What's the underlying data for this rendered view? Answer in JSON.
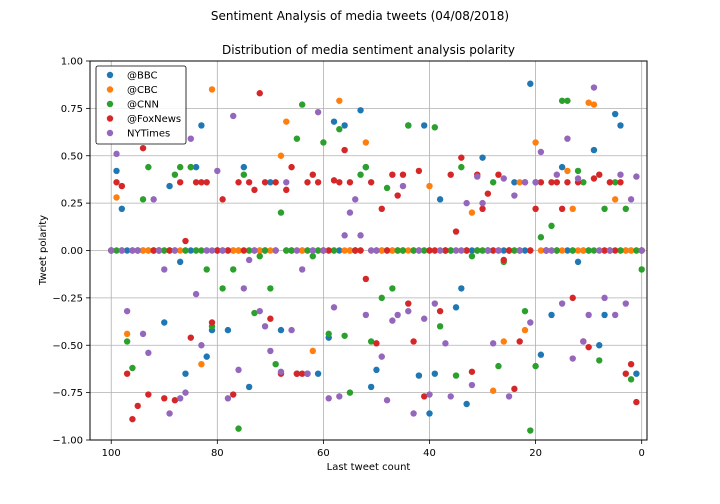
{
  "chart_data": {
    "type": "scatter",
    "title": "Sentiment Analysis of media tweets (04/08/2018)",
    "subtitle": "Distribution of media sentiment analysis polarity",
    "xlabel": "Last tweet count",
    "ylabel": "Tweet polarity",
    "xlim": [
      104,
      -1
    ],
    "ylim": [
      -1.0,
      1.0
    ],
    "x_ticks": [
      100,
      80,
      60,
      40,
      20,
      0
    ],
    "x_tick_labels": [
      "100",
      "80",
      "60",
      "40",
      "20",
      "0"
    ],
    "y_ticks": [
      1.0,
      0.75,
      0.5,
      0.25,
      0.0,
      -0.25,
      -0.5,
      -0.75,
      -1.0
    ],
    "y_tick_labels": [
      "1.00",
      "0.75",
      "0.50",
      "0.25",
      "0.00",
      "−0.25",
      "−0.50",
      "−0.75",
      "−1.00"
    ],
    "grid": true,
    "legend_position": "top-left",
    "series": [
      {
        "name": "@BBC",
        "color": "#1f77b4",
        "points": [
          [
            99,
            0.42
          ],
          [
            98,
            0.22
          ],
          [
            92,
            0.0
          ],
          [
            90,
            -0.38
          ],
          [
            89,
            0.34
          ],
          [
            87,
            -0.06
          ],
          [
            86,
            -0.65
          ],
          [
            84,
            0.44
          ],
          [
            83,
            0.66
          ],
          [
            82,
            -0.56
          ],
          [
            81,
            -0.42
          ],
          [
            78,
            -0.42
          ],
          [
            75,
            0.44
          ],
          [
            74,
            -0.72
          ],
          [
            70,
            0.36
          ],
          [
            68,
            -0.42
          ],
          [
            65,
            -0.65
          ],
          [
            63,
            -0.65
          ],
          [
            61,
            -0.65
          ],
          [
            59,
            -0.46
          ],
          [
            58,
            0.68
          ],
          [
            56,
            0.66
          ],
          [
            53,
            0.74
          ],
          [
            52,
            0.44
          ],
          [
            51,
            -0.72
          ],
          [
            50,
            -0.63
          ],
          [
            44,
            0.66
          ],
          [
            42,
            -0.66
          ],
          [
            41,
            0.66
          ],
          [
            40,
            -0.86
          ],
          [
            39,
            -0.65
          ],
          [
            38,
            0.27
          ],
          [
            35,
            -0.3
          ],
          [
            34,
            -0.2
          ],
          [
            33,
            -0.81
          ],
          [
            30,
            0.49
          ],
          [
            24,
            0.36
          ],
          [
            21,
            0.88
          ],
          [
            20,
            0.36
          ],
          [
            19,
            -0.55
          ],
          [
            17,
            -0.34
          ],
          [
            15,
            0.44
          ],
          [
            12,
            -0.06
          ],
          [
            9,
            0.53
          ],
          [
            8,
            -0.5
          ],
          [
            7,
            -0.34
          ],
          [
            5,
            0.72
          ],
          [
            4,
            0.66
          ],
          [
            1,
            -0.65
          ]
        ]
      },
      {
        "name": "@CBC",
        "color": "#ff7f0e",
        "points": [
          [
            99,
            0.28
          ],
          [
            97,
            -0.44
          ],
          [
            93,
            0.0
          ],
          [
            85,
            0.44
          ],
          [
            83,
            -0.6
          ],
          [
            81,
            0.85
          ],
          [
            68,
            0.5
          ],
          [
            67,
            0.68
          ],
          [
            62,
            -0.53
          ],
          [
            57,
            0.79
          ],
          [
            52,
            0.57
          ],
          [
            40,
            0.34
          ],
          [
            32,
            0.2
          ],
          [
            28,
            -0.74
          ],
          [
            26,
            -0.48
          ],
          [
            23,
            0.36
          ],
          [
            22,
            -0.42
          ],
          [
            20,
            0.57
          ],
          [
            14,
            0.42
          ],
          [
            13,
            0.22
          ],
          [
            10,
            0.78
          ],
          [
            9,
            0.77
          ],
          [
            5,
            0.27
          ]
        ]
      },
      {
        "name": "@CNN",
        "color": "#2ca02c",
        "points": [
          [
            97,
            -0.48
          ],
          [
            96,
            -0.62
          ],
          [
            94,
            0.27
          ],
          [
            93,
            0.44
          ],
          [
            88,
            0.4
          ],
          [
            87,
            0.44
          ],
          [
            85,
            0.44
          ],
          [
            82,
            -0.1
          ],
          [
            81,
            -0.4
          ],
          [
            79,
            -0.2
          ],
          [
            77,
            -0.1
          ],
          [
            76,
            -0.94
          ],
          [
            75,
            0.4
          ],
          [
            73,
            -0.33
          ],
          [
            72,
            -0.03
          ],
          [
            70,
            -0.2
          ],
          [
            69,
            -0.6
          ],
          [
            68,
            0.2
          ],
          [
            65,
            0.59
          ],
          [
            64,
            0.77
          ],
          [
            62,
            -0.03
          ],
          [
            60,
            0.57
          ],
          [
            59,
            -0.44
          ],
          [
            57,
            0.64
          ],
          [
            56,
            -0.45
          ],
          [
            55,
            -0.75
          ],
          [
            53,
            0.4
          ],
          [
            52,
            0.44
          ],
          [
            51,
            -0.48
          ],
          [
            49,
            -0.25
          ],
          [
            48,
            0.33
          ],
          [
            47,
            -0.2
          ],
          [
            44,
            0.66
          ],
          [
            39,
            0.65
          ],
          [
            38,
            -0.4
          ],
          [
            35,
            -0.66
          ],
          [
            34,
            0.44
          ],
          [
            32,
            -0.03
          ],
          [
            28,
            0.36
          ],
          [
            27,
            -0.61
          ],
          [
            26,
            -0.06
          ],
          [
            22,
            -0.32
          ],
          [
            21,
            -0.95
          ],
          [
            20,
            -0.61
          ],
          [
            19,
            0.07
          ],
          [
            17,
            0.13
          ],
          [
            15,
            0.79
          ],
          [
            14,
            0.79
          ],
          [
            12,
            0.42
          ],
          [
            11,
            0.36
          ],
          [
            8,
            -0.58
          ],
          [
            7,
            0.22
          ],
          [
            5,
            0.36
          ],
          [
            3,
            0.22
          ],
          [
            2,
            -0.68
          ],
          [
            0,
            -0.1
          ]
        ]
      },
      {
        "name": "@FoxNews",
        "color": "#d62728",
        "points": [
          [
            99,
            0.36
          ],
          [
            98,
            0.34
          ],
          [
            97,
            -0.65
          ],
          [
            96,
            -0.89
          ],
          [
            95,
            -0.82
          ],
          [
            94,
            0.54
          ],
          [
            93,
            -0.76
          ],
          [
            90,
            -0.78
          ],
          [
            88,
            -0.79
          ],
          [
            87,
            0.36
          ],
          [
            86,
            0.05
          ],
          [
            85,
            -0.46
          ],
          [
            84,
            0.36
          ],
          [
            83,
            0.36
          ],
          [
            82,
            0.36
          ],
          [
            81,
            -0.38
          ],
          [
            79,
            0.27
          ],
          [
            77,
            -0.76
          ],
          [
            76,
            0.36
          ],
          [
            74,
            0.36
          ],
          [
            73,
            0.32
          ],
          [
            72,
            0.83
          ],
          [
            71,
            0.36
          ],
          [
            70,
            -0.36
          ],
          [
            69,
            0.36
          ],
          [
            68,
            -0.65
          ],
          [
            67,
            0.32
          ],
          [
            66,
            0.44
          ],
          [
            65,
            -0.65
          ],
          [
            64,
            -0.65
          ],
          [
            63,
            0.36
          ],
          [
            62,
            0.4
          ],
          [
            61,
            0.36
          ],
          [
            58,
            0.37
          ],
          [
            57,
            0.36
          ],
          [
            56,
            0.53
          ],
          [
            55,
            0.36
          ],
          [
            52,
            -0.15
          ],
          [
            51,
            0.36
          ],
          [
            50,
            -0.49
          ],
          [
            49,
            0.22
          ],
          [
            47,
            0.4
          ],
          [
            46,
            0.29
          ],
          [
            45,
            0.4
          ],
          [
            44,
            -0.28
          ],
          [
            43,
            -0.48
          ],
          [
            42,
            0.42
          ],
          [
            41,
            -0.77
          ],
          [
            38,
            -0.32
          ],
          [
            36,
            0.4
          ],
          [
            35,
            0.1
          ],
          [
            34,
            0.49
          ],
          [
            32,
            -0.64
          ],
          [
            31,
            0.4
          ],
          [
            30,
            0.22
          ],
          [
            29,
            0.3
          ],
          [
            27,
            0.4
          ],
          [
            26,
            -0.05
          ],
          [
            24,
            -0.73
          ],
          [
            23,
            -0.48
          ],
          [
            22,
            0.36
          ],
          [
            20,
            0.22
          ],
          [
            19,
            0.36
          ],
          [
            17,
            0.36
          ],
          [
            16,
            0.36
          ],
          [
            15,
            0.22
          ],
          [
            14,
            0.36
          ],
          [
            13,
            -0.25
          ],
          [
            12,
            0.36
          ],
          [
            11,
            -0.48
          ],
          [
            10,
            -0.51
          ],
          [
            9,
            0.38
          ],
          [
            8,
            0.4
          ],
          [
            6,
            0.36
          ],
          [
            4,
            0.36
          ],
          [
            3,
            -0.65
          ],
          [
            2,
            -0.6
          ],
          [
            1,
            -0.8
          ]
        ]
      },
      {
        "name": "NYTimes",
        "color": "#9467bd",
        "points": [
          [
            99,
            0.51
          ],
          [
            97,
            -0.32
          ],
          [
            94,
            -0.44
          ],
          [
            93,
            -0.54
          ],
          [
            92,
            0.27
          ],
          [
            90,
            -0.1
          ],
          [
            89,
            -0.86
          ],
          [
            87,
            -0.78
          ],
          [
            86,
            -0.75
          ],
          [
            85,
            0.59
          ],
          [
            84,
            -0.23
          ],
          [
            83,
            -0.5
          ],
          [
            80,
            0.42
          ],
          [
            78,
            -0.78
          ],
          [
            77,
            0.71
          ],
          [
            76,
            -0.63
          ],
          [
            75,
            -0.2
          ],
          [
            74,
            -0.05
          ],
          [
            72,
            -0.32
          ],
          [
            71,
            -0.4
          ],
          [
            70,
            -0.53
          ],
          [
            68,
            -0.64
          ],
          [
            67,
            0.36
          ],
          [
            66,
            -0.42
          ],
          [
            64,
            -0.1
          ],
          [
            63,
            -0.65
          ],
          [
            61,
            0.73
          ],
          [
            59,
            -0.78
          ],
          [
            58,
            -0.3
          ],
          [
            57,
            -0.77
          ],
          [
            56,
            0.08
          ],
          [
            55,
            0.2
          ],
          [
            54,
            0.27
          ],
          [
            53,
            0.08
          ],
          [
            52,
            -0.34
          ],
          [
            49,
            -0.56
          ],
          [
            48,
            -0.79
          ],
          [
            47,
            -0.37
          ],
          [
            46,
            -0.34
          ],
          [
            45,
            0.34
          ],
          [
            44,
            -0.32
          ],
          [
            43,
            -0.86
          ],
          [
            41,
            -0.36
          ],
          [
            40,
            -0.76
          ],
          [
            39,
            -0.28
          ],
          [
            37,
            -0.49
          ],
          [
            36,
            -0.77
          ],
          [
            33,
            0.25
          ],
          [
            32,
            -0.71
          ],
          [
            31,
            0.39
          ],
          [
            30,
            0.25
          ],
          [
            28,
            -0.49
          ],
          [
            26,
            0.38
          ],
          [
            25,
            -0.77
          ],
          [
            24,
            0.29
          ],
          [
            22,
            0.36
          ],
          [
            21,
            -0.38
          ],
          [
            20,
            0.36
          ],
          [
            19,
            0.52
          ],
          [
            16,
            0.4
          ],
          [
            15,
            -0.28
          ],
          [
            14,
            0.59
          ],
          [
            13,
            -0.57
          ],
          [
            12,
            0.38
          ],
          [
            11,
            -0.48
          ],
          [
            10,
            -0.34
          ],
          [
            9,
            0.86
          ],
          [
            7,
            -0.25
          ],
          [
            5,
            -0.34
          ],
          [
            4,
            0.4
          ],
          [
            3,
            -0.28
          ],
          [
            2,
            0.27
          ],
          [
            1,
            0.39
          ],
          [
            0,
            0.0
          ]
        ]
      }
    ]
  }
}
